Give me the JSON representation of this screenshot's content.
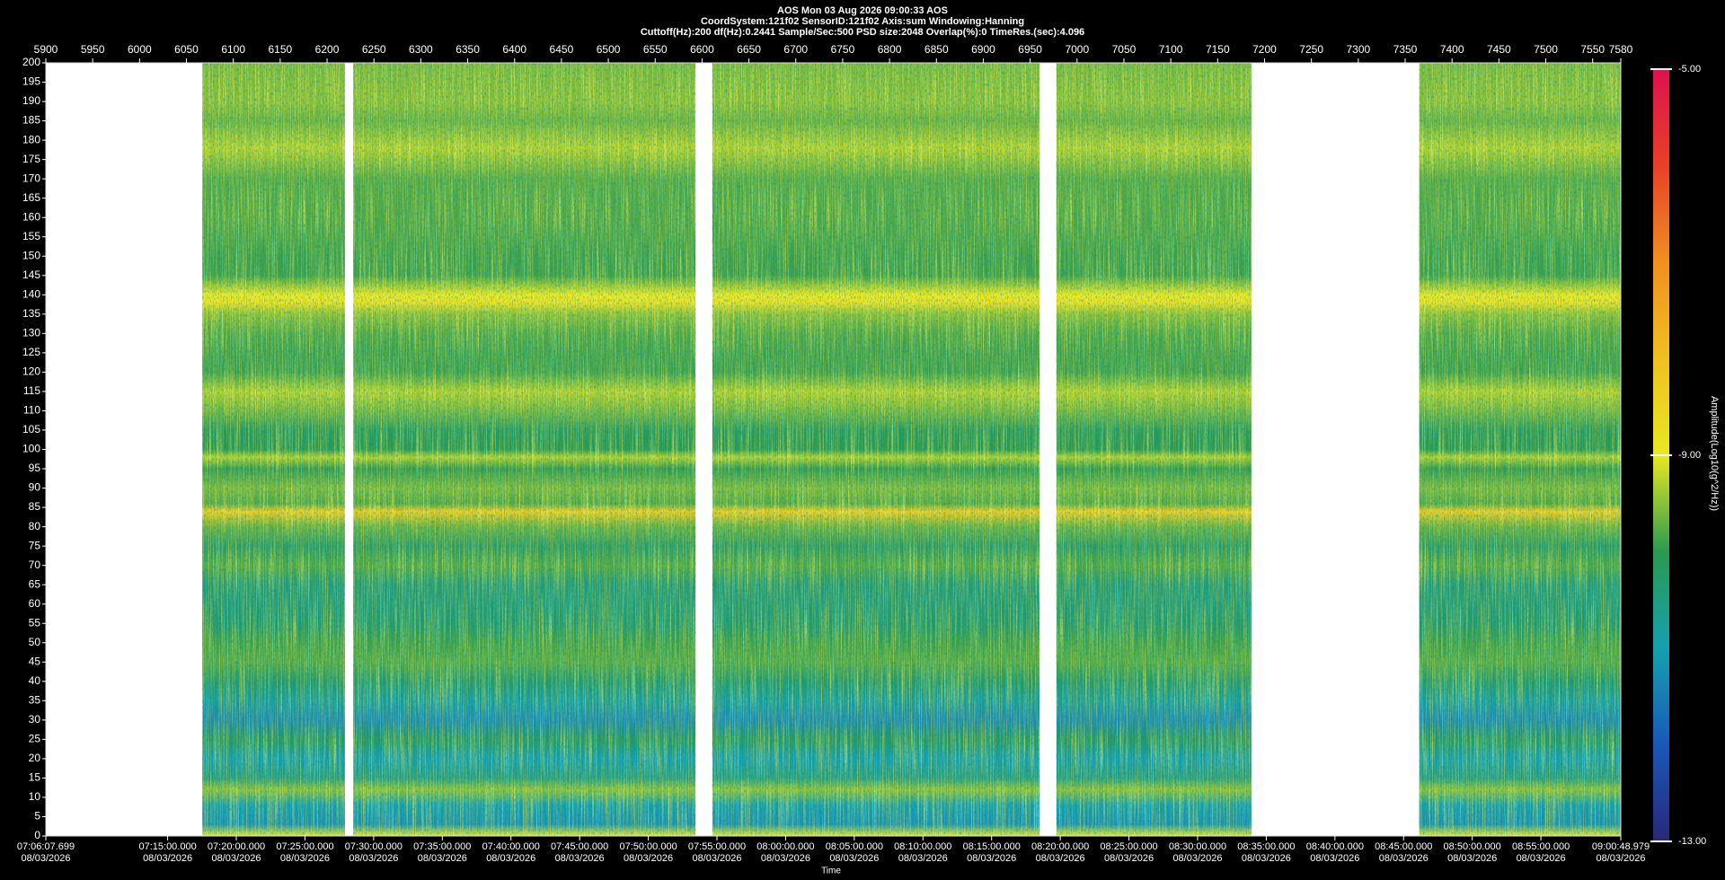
{
  "chart_data": {
    "type": "spectrogram",
    "title": "AOS  Mon 03 Aug 2026 09:00:33  AOS",
    "subtitle": "CoordSystem:121f02   SensorID:121f02   Axis:sum   Windowing:Hanning",
    "subtitle2": "Cuttoff(Hz):200   df(Hz):0.2441   Sample/Sec:500   PSD size:2048   Overlap(%):0   TimeRes.(sec):4.096",
    "xlabel2": "Time",
    "colorbar_label": "Amplitude(Log10(g^2/Hz))",
    "xlim": [
      5900,
      7580
    ],
    "xticks": [
      5900,
      5950,
      6000,
      6050,
      6100,
      6150,
      6200,
      6250,
      6300,
      6350,
      6400,
      6450,
      6500,
      6550,
      6600,
      6650,
      6700,
      6750,
      6800,
      6850,
      6900,
      6950,
      7000,
      7050,
      7100,
      7150,
      7200,
      7250,
      7300,
      7350,
      7400,
      7450,
      7500,
      7550,
      7580
    ],
    "x2lim": [
      25567.699,
      32448.979
    ],
    "x2ticks": [
      {
        "value": 25567.699,
        "label": "07:06:07.699",
        "date": "08/03/2026"
      },
      {
        "value": 26100,
        "label": "07:15:00.000",
        "date": "08/03/2026"
      },
      {
        "value": 26400,
        "label": "07:20:00.000",
        "date": "08/03/2026"
      },
      {
        "value": 26700,
        "label": "07:25:00.000",
        "date": "08/03/2026"
      },
      {
        "value": 27000,
        "label": "07:30:00.000",
        "date": "08/03/2026"
      },
      {
        "value": 27300,
        "label": "07:35:00.000",
        "date": "08/03/2026"
      },
      {
        "value": 27600,
        "label": "07:40:00.000",
        "date": "08/03/2026"
      },
      {
        "value": 27900,
        "label": "07:45:00.000",
        "date": "08/03/2026"
      },
      {
        "value": 28200,
        "label": "07:50:00.000",
        "date": "08/03/2026"
      },
      {
        "value": 28500,
        "label": "07:55:00.000",
        "date": "08/03/2026"
      },
      {
        "value": 28800,
        "label": "08:00:00.000",
        "date": "08/03/2026"
      },
      {
        "value": 29100,
        "label": "08:05:00.000",
        "date": "08/03/2026"
      },
      {
        "value": 29400,
        "label": "08:10:00.000",
        "date": "08/03/2026"
      },
      {
        "value": 29700,
        "label": "08:15:00.000",
        "date": "08/03/2026"
      },
      {
        "value": 30000,
        "label": "08:20:00.000",
        "date": "08/03/2026"
      },
      {
        "value": 30300,
        "label": "08:25:00.000",
        "date": "08/03/2026"
      },
      {
        "value": 30600,
        "label": "08:30:00.000",
        "date": "08/03/2026"
      },
      {
        "value": 30900,
        "label": "08:35:00.000",
        "date": "08/03/2026"
      },
      {
        "value": 31200,
        "label": "08:40:00.000",
        "date": "08/03/2026"
      },
      {
        "value": 31500,
        "label": "08:45:00.000",
        "date": "08/03/2026"
      },
      {
        "value": 31800,
        "label": "08:50:00.000",
        "date": "08/03/2026"
      },
      {
        "value": 32100,
        "label": "08:55:00.000",
        "date": "08/03/2026"
      },
      {
        "value": 32448.979,
        "label": "09:00:48.979",
        "date": "08/03/2026"
      }
    ],
    "ylim": [
      0,
      200
    ],
    "yticks": [
      0,
      5,
      10,
      15,
      20,
      25,
      30,
      35,
      40,
      45,
      50,
      55,
      60,
      65,
      70,
      75,
      80,
      85,
      90,
      95,
      100,
      105,
      110,
      115,
      120,
      125,
      130,
      135,
      140,
      145,
      150,
      155,
      160,
      165,
      170,
      175,
      180,
      185,
      190,
      195,
      200
    ],
    "clim": [
      -13,
      -5
    ],
    "cticks": [
      {
        "value": -13,
        "label": "-13.00"
      },
      {
        "value": -9,
        "label": "-9.00"
      },
      {
        "value": -5,
        "label": "-5.00"
      }
    ],
    "colorscale": [
      "#282878",
      "#1a58b8",
      "#15a0b0",
      "#2a9a50",
      "#e8e820",
      "#f0c020",
      "#f09020",
      "#e84028",
      "#e01050"
    ],
    "segments": [
      [
        6067,
        6219
      ],
      [
        6228,
        6593
      ],
      [
        6611,
        6960
      ],
      [
        6978,
        7186
      ],
      [
        7365,
        7580
      ]
    ],
    "frequencies": [
      0,
      3,
      8,
      12,
      15,
      20,
      25,
      30,
      35,
      40,
      45,
      50,
      55,
      60,
      65,
      70,
      75,
      80,
      84,
      86,
      90,
      95,
      98,
      100,
      105,
      112,
      115,
      120,
      125,
      130,
      135,
      138,
      140,
      145,
      150,
      160,
      170,
      178,
      185,
      190,
      200
    ],
    "levels": [
      -9.0,
      -11.2,
      -11.0,
      -9.5,
      -10.5,
      -11.0,
      -10.2,
      -11.3,
      -10.8,
      -10.3,
      -9.8,
      -9.9,
      -10.3,
      -10.4,
      -10.4,
      -9.8,
      -10.2,
      -9.7,
      -8.3,
      -9.8,
      -9.6,
      -10.0,
      -9.3,
      -10.0,
      -10.1,
      -9.5,
      -9.3,
      -9.9,
      -9.9,
      -9.8,
      -9.5,
      -8.8,
      -9.0,
      -9.9,
      -9.9,
      -9.8,
      -9.8,
      -9.3,
      -9.7,
      -9.5,
      -9.6
    ]
  }
}
